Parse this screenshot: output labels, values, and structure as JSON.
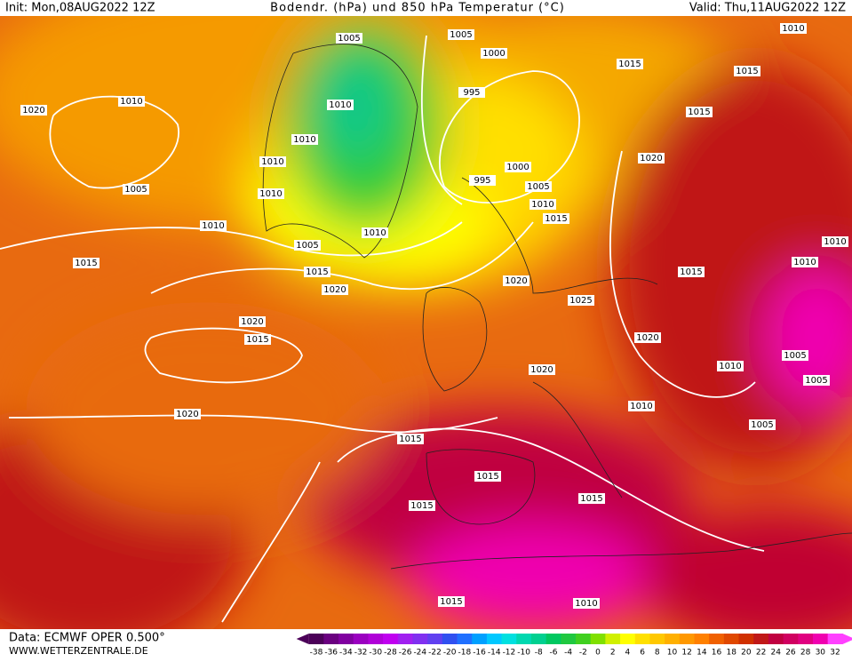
{
  "header": {
    "init": "Init: Mon,08AUG2022 12Z",
    "title": "Bodendr. (hPa) und 850 hPa Temperatur (°C)",
    "valid": "Valid: Thu,11AUG2022 12Z"
  },
  "footer": {
    "source": "Data: ECMWF OPER 0.500°",
    "site": "WWW.WETTERZENTRALE.DE"
  },
  "colorbar": {
    "ticks": [
      -38,
      -36,
      -34,
      -32,
      -30,
      -28,
      -26,
      -24,
      -22,
      -20,
      -18,
      -16,
      -14,
      -12,
      -10,
      -8,
      -6,
      -4,
      -2,
      0,
      2,
      4,
      6,
      8,
      10,
      12,
      14,
      16,
      18,
      20,
      22,
      24,
      26,
      28,
      30,
      32
    ],
    "colors": [
      "#4b0058",
      "#6a0080",
      "#8000a0",
      "#9a00c0",
      "#b000d8",
      "#c000f0",
      "#a020f0",
      "#8030f0",
      "#6040f0",
      "#3050f0",
      "#2070ff",
      "#00a0ff",
      "#00c8ff",
      "#00e0e0",
      "#00d8b0",
      "#00d090",
      "#00c860",
      "#20c840",
      "#40d020",
      "#80e000",
      "#d0f000",
      "#ffff00",
      "#ffe000",
      "#ffc800",
      "#ffb000",
      "#ff9800",
      "#ff8000",
      "#f06000",
      "#e04800",
      "#d03000",
      "#c01818",
      "#c00040",
      "#d00060",
      "#e00080",
      "#f000b0",
      "#ff40ff"
    ]
  },
  "isobars": [
    "1005",
    "1005",
    "1000",
    "1015",
    "1010",
    "1015",
    "1020",
    "1010",
    "1010",
    "995",
    "1015",
    "1010",
    "1010",
    "1020",
    "1000",
    "995",
    "1005",
    "1005",
    "1010",
    "1010",
    "1015",
    "1010",
    "1010",
    "1005",
    "1010",
    "1015",
    "1015",
    "1010",
    "1015",
    "1020",
    "1020",
    "1025",
    "1020",
    "1015",
    "1020",
    "1005",
    "1010",
    "1020",
    "1005",
    "1010",
    "1020",
    "1005",
    "1015",
    "1015",
    "1015",
    "1015",
    "1015",
    "1010"
  ]
}
